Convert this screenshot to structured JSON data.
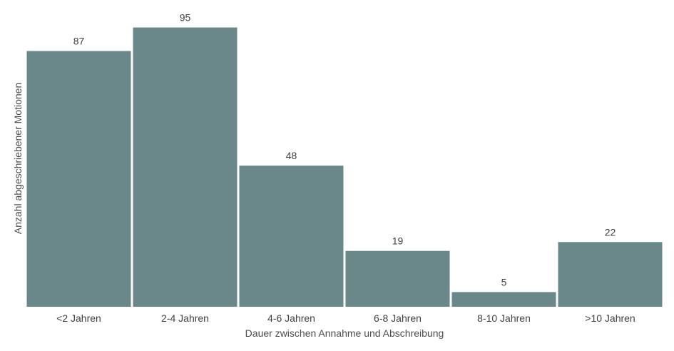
{
  "chart_data": {
    "type": "bar",
    "title": "",
    "xlabel": "Dauer zwischen Annahme und Abschreibung",
    "ylabel": "Anzahl abgeschriebener  Motionen",
    "categories": [
      "<2 Jahren",
      "2-4 Jahren",
      "4-6 Jahren",
      "6-8 Jahren",
      "8-10 Jahren",
      ">10 Jahren"
    ],
    "values": [
      87,
      95,
      48,
      19,
      5,
      22
    ],
    "ylim": [
      0,
      99
    ],
    "grid": false,
    "legend": "none",
    "bar_color": "#6a8889",
    "data_labels": true
  }
}
